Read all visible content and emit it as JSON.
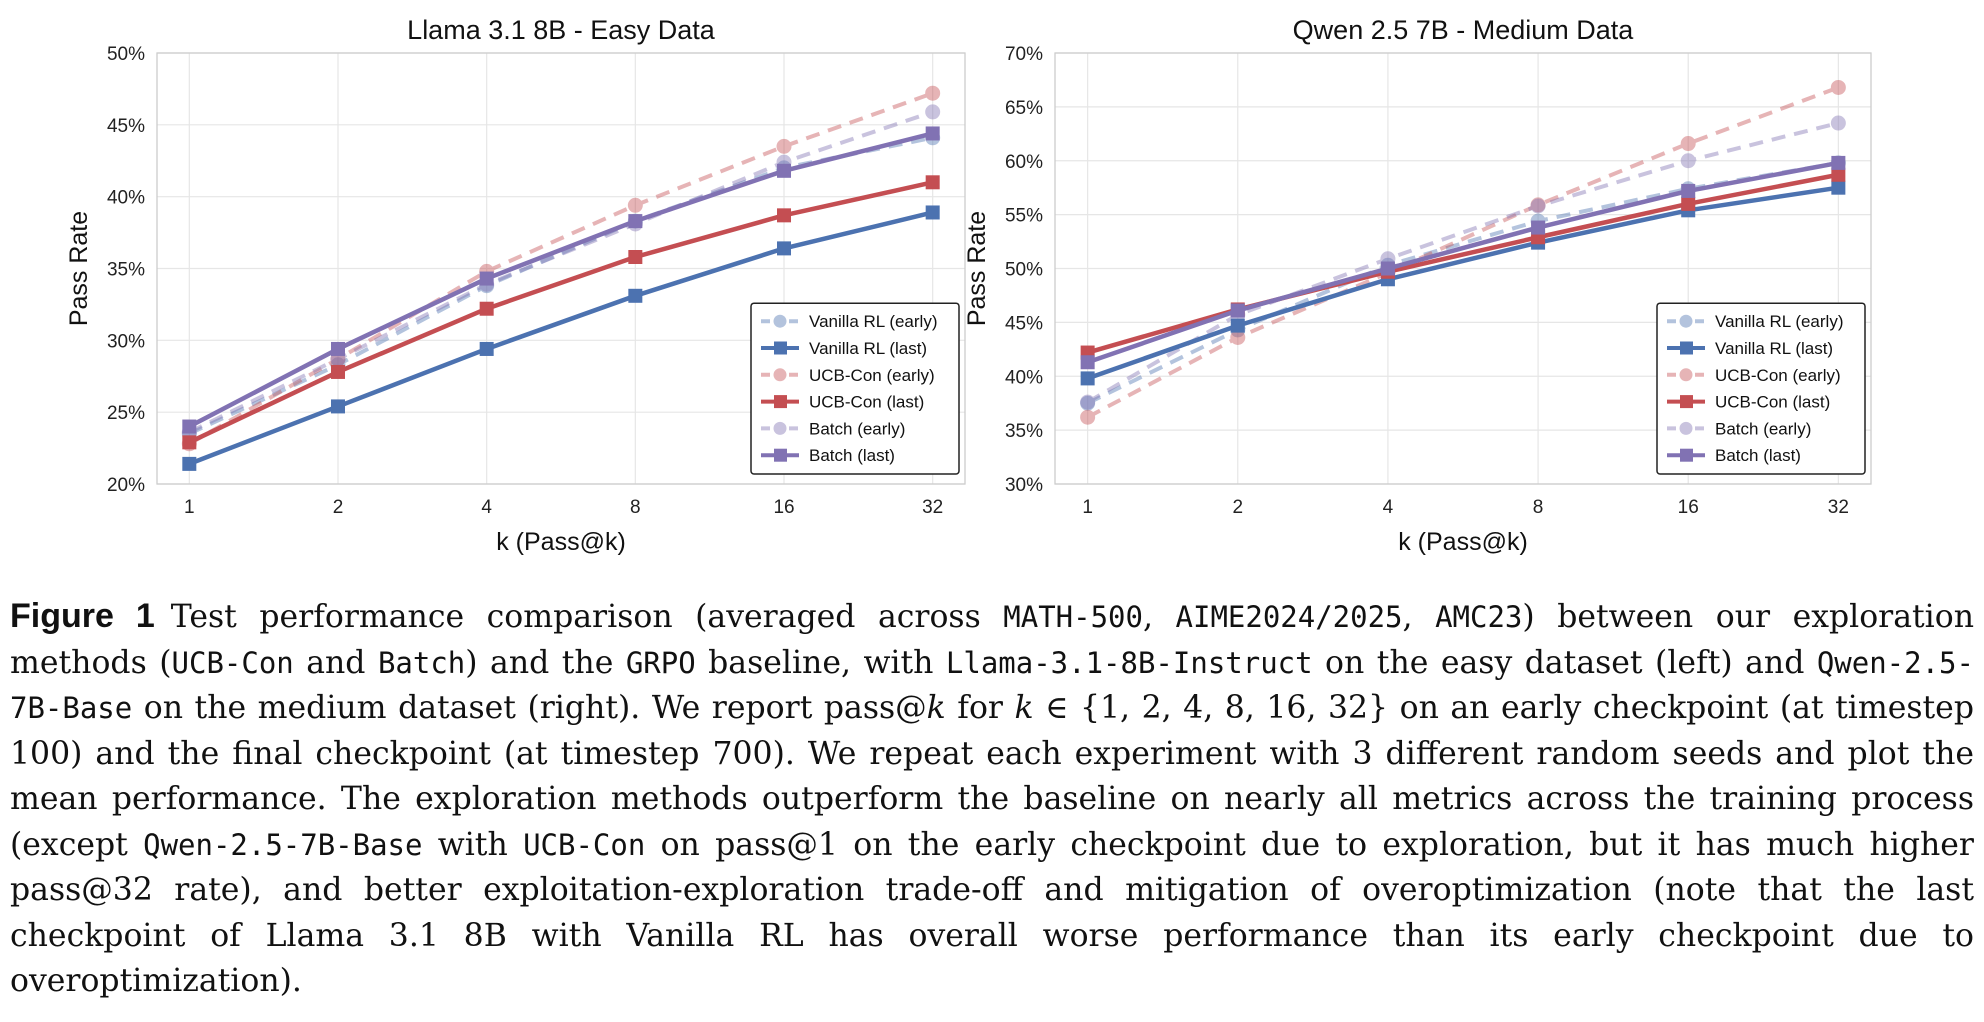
{
  "chart_data": [
    {
      "type": "line",
      "title": "Llama 3.1 8B - Easy Data",
      "xlabel": "k (Pass@k)",
      "ylabel": "Pass Rate",
      "x": [
        "1",
        "2",
        "4",
        "8",
        "16",
        "32"
      ],
      "ylim": [
        20,
        50
      ],
      "yticks": [
        "20%",
        "25%",
        "30%",
        "35%",
        "40%",
        "45%",
        "50%"
      ],
      "ytick_values": [
        20,
        25,
        30,
        35,
        40,
        45,
        50
      ],
      "grid": true,
      "legend_position": "lower-right",
      "series": [
        {
          "name": "Vanilla RL (early)",
          "color": "#4c72b0",
          "style": "early",
          "marker": "circle",
          "values": [
            23.5,
            28.3,
            33.8,
            38.3,
            42.0,
            44.1
          ]
        },
        {
          "name": "Vanilla RL (last)",
          "color": "#4c72b0",
          "style": "last",
          "marker": "square",
          "values": [
            21.4,
            25.4,
            29.4,
            33.1,
            36.4,
            38.9
          ]
        },
        {
          "name": "UCB-Con (early)",
          "color": "#c44e52",
          "style": "early",
          "marker": "circle",
          "values": [
            22.8,
            28.7,
            34.8,
            39.4,
            43.5,
            47.2
          ]
        },
        {
          "name": "UCB-Con (last)",
          "color": "#c44e52",
          "style": "last",
          "marker": "square",
          "values": [
            22.9,
            27.8,
            32.2,
            35.8,
            38.7,
            41.0
          ]
        },
        {
          "name": "Batch (early)",
          "color": "#8172b3",
          "style": "early",
          "marker": "circle",
          "values": [
            23.6,
            28.7,
            33.9,
            38.1,
            42.4,
            45.9
          ]
        },
        {
          "name": "Batch (last)",
          "color": "#8172b3",
          "style": "last",
          "marker": "square",
          "values": [
            24.0,
            29.4,
            34.3,
            38.3,
            41.8,
            44.4
          ]
        }
      ]
    },
    {
      "type": "line",
      "title": "Qwen 2.5 7B - Medium Data",
      "xlabel": "k (Pass@k)",
      "ylabel": "Pass Rate",
      "x": [
        "1",
        "2",
        "4",
        "8",
        "16",
        "32"
      ],
      "ylim": [
        30,
        70
      ],
      "yticks": [
        "30%",
        "35%",
        "40%",
        "45%",
        "50%",
        "55%",
        "60%",
        "65%",
        "70%"
      ],
      "ytick_values": [
        30,
        35,
        40,
        45,
        50,
        55,
        60,
        65,
        70
      ],
      "grid": true,
      "legend_position": "lower-right",
      "series": [
        {
          "name": "Vanilla RL (early)",
          "color": "#4c72b0",
          "style": "early",
          "marker": "circle",
          "values": [
            37.5,
            44.3,
            50.3,
            54.4,
            57.4,
            59.8
          ]
        },
        {
          "name": "Vanilla RL (last)",
          "color": "#4c72b0",
          "style": "last",
          "marker": "square",
          "values": [
            39.8,
            44.7,
            49.0,
            52.4,
            55.4,
            57.5
          ]
        },
        {
          "name": "UCB-Con (early)",
          "color": "#c44e52",
          "style": "early",
          "marker": "circle",
          "values": [
            36.2,
            43.6,
            49.6,
            55.9,
            61.6,
            66.8
          ]
        },
        {
          "name": "UCB-Con (last)",
          "color": "#c44e52",
          "style": "last",
          "marker": "square",
          "values": [
            42.2,
            46.2,
            49.7,
            52.9,
            56.0,
            58.7
          ]
        },
        {
          "name": "Batch (early)",
          "color": "#8172b3",
          "style": "early",
          "marker": "circle",
          "values": [
            37.6,
            45.7,
            50.9,
            55.8,
            60.0,
            63.5
          ]
        },
        {
          "name": "Batch (last)",
          "color": "#8172b3",
          "style": "last",
          "marker": "square",
          "values": [
            41.3,
            46.1,
            50.0,
            53.8,
            57.2,
            59.8
          ]
        }
      ]
    }
  ],
  "caption": {
    "label": "Figure 1",
    "t1": "Test performance comparison (averaged across ",
    "c1": "MATH-500",
    "t2": ", ",
    "c2": "AIME2024/2025",
    "t3": ", ",
    "c3": "AMC23",
    "t4": ") between our exploration methods (",
    "c4": "UCB-Con",
    "t5": " and ",
    "c5": "Batch",
    "t6": ") and the ",
    "c6": "GRPO",
    "t7": " baseline, with ",
    "c7": "Llama-3.1-8B-Instruct",
    "t8": " on the easy dataset (left) and ",
    "c8": "Qwen-2.5-7B-Base",
    "t9": " on the medium dataset (right). We report pass@",
    "m1": "k",
    "t10": " for ",
    "m2": "k",
    "t11": " ∈ {1, 2, 4, 8, 16, 32} on an early checkpoint (at timestep 100) and the final checkpoint (at timestep 700). We repeat each experiment with 3 different random seeds and plot the mean performance. The exploration methods outperform the baseline on nearly all metrics across the training process (except ",
    "c9": "Qwen-2.5-7B-Base",
    "t12": " with ",
    "c10": "UCB-Con",
    "t13": " on pass@1 on the early checkpoint due to exploration, but it has much higher pass@32 rate), and better exploitation-exploration trade-off and mitigation of overoptimization (note that the last checkpoint of Llama 3.1 8B with Vanilla RL has overall worse performance than its early checkpoint due to overoptimization)."
  }
}
